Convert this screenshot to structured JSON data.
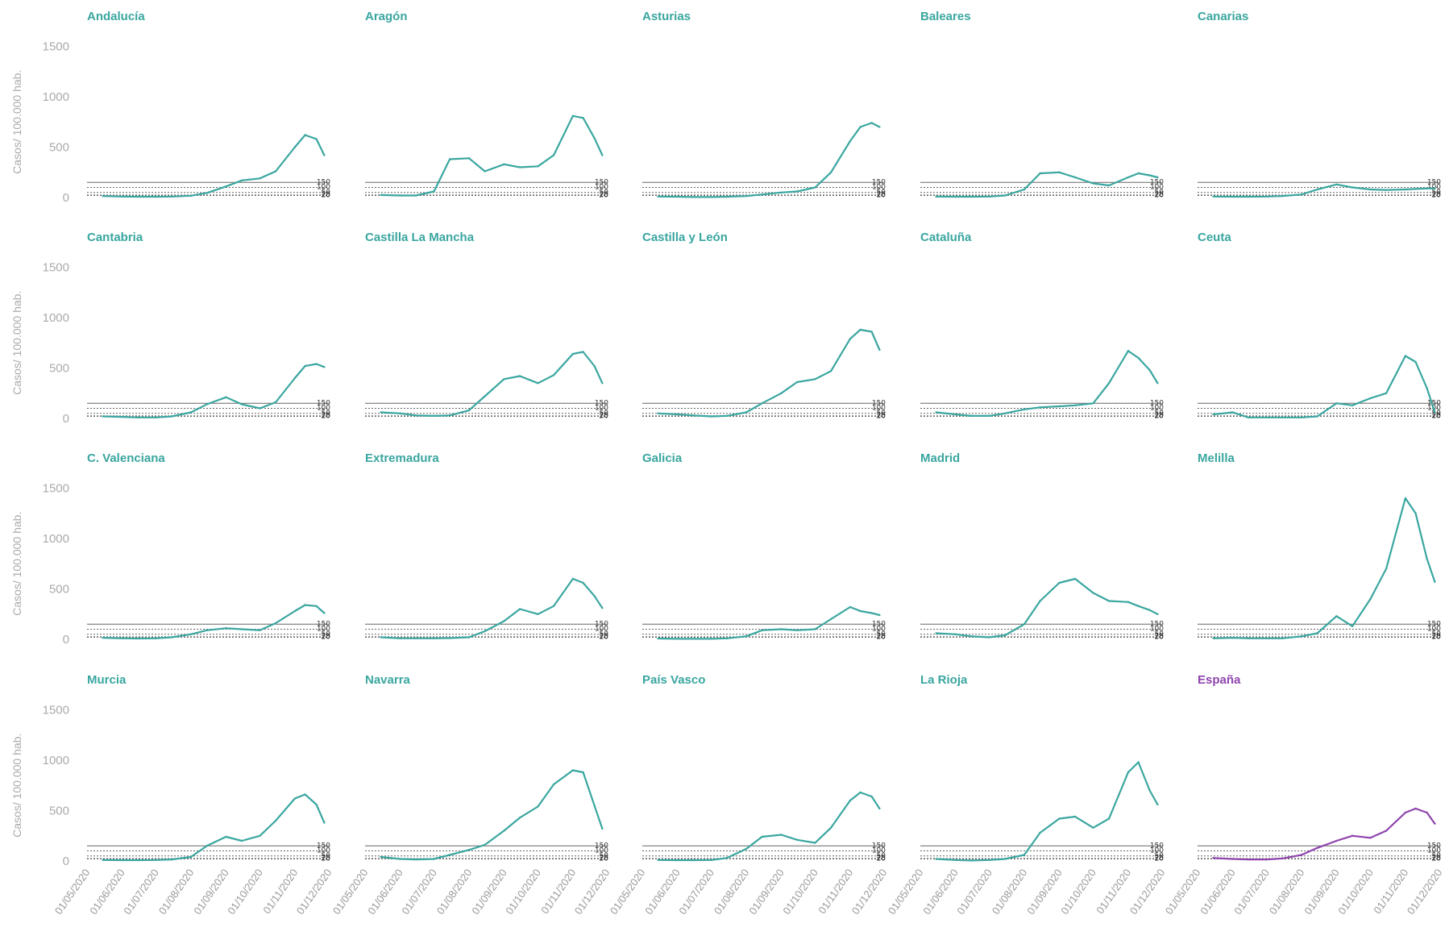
{
  "chart_data": {
    "type": "line",
    "ylabel": "Casos/ 100.000 hab.",
    "ylim": [
      0,
      1500
    ],
    "yticks": [
      "1500",
      "1000",
      "500",
      "0"
    ],
    "xticks": [
      "01/05/2020",
      "01/06/2020",
      "01/07/2020",
      "01/08/2020",
      "01/09/2020",
      "01/10/2020",
      "01/11/2020",
      "01/12/2020"
    ],
    "x_dates": [
      "15/05/2020",
      "01/06/2020",
      "15/06/2020",
      "01/07/2020",
      "15/07/2020",
      "01/08/2020",
      "15/08/2020",
      "01/09/2020",
      "15/09/2020",
      "01/10/2020",
      "15/10/2020",
      "01/11/2020",
      "10/11/2020",
      "20/11/2020",
      "27/11/2020"
    ],
    "reference_lines": [
      {
        "value": 150,
        "label": "150"
      },
      {
        "value": 100,
        "label": "100"
      },
      {
        "value": 50,
        "label": "50"
      },
      {
        "value": 25,
        "label": "25"
      },
      {
        "value": 20,
        "label": "20"
      }
    ],
    "colors": {
      "region": "#3aa6a0",
      "national": "#8e44ad",
      "reference": "#666666",
      "axis_text": "#aaaaaa"
    },
    "series": [
      {
        "name": "Andalucía",
        "values": [
          15,
          10,
          8,
          8,
          10,
          18,
          45,
          110,
          170,
          190,
          260,
          500,
          620,
          580,
          420
        ]
      },
      {
        "name": "Aragón",
        "values": [
          25,
          20,
          20,
          60,
          380,
          390,
          260,
          330,
          300,
          310,
          420,
          810,
          790,
          590,
          420
        ]
      },
      {
        "name": "Asturias",
        "values": [
          10,
          8,
          5,
          5,
          8,
          15,
          30,
          50,
          60,
          100,
          250,
          560,
          700,
          740,
          700
        ]
      },
      {
        "name": "Baleares",
        "values": [
          10,
          8,
          8,
          10,
          20,
          80,
          240,
          250,
          200,
          140,
          120,
          200,
          240,
          220,
          200
        ]
      },
      {
        "name": "Canarias",
        "values": [
          10,
          8,
          8,
          10,
          15,
          30,
          80,
          130,
          100,
          80,
          75,
          80,
          85,
          90,
          90
        ]
      },
      {
        "name": "Cantabria",
        "values": [
          20,
          15,
          10,
          10,
          20,
          60,
          140,
          210,
          140,
          100,
          160,
          400,
          520,
          540,
          510
        ]
      },
      {
        "name": "Castilla La Mancha",
        "values": [
          60,
          50,
          30,
          25,
          30,
          80,
          220,
          390,
          420,
          350,
          430,
          640,
          660,
          520,
          350
        ]
      },
      {
        "name": "Castilla y León",
        "values": [
          50,
          40,
          30,
          20,
          25,
          60,
          150,
          250,
          360,
          390,
          470,
          790,
          880,
          860,
          680
        ]
      },
      {
        "name": "Cataluña",
        "values": [
          60,
          40,
          25,
          25,
          50,
          90,
          110,
          120,
          130,
          150,
          350,
          670,
          600,
          480,
          350
        ]
      },
      {
        "name": "Ceuta",
        "values": [
          40,
          60,
          10,
          10,
          10,
          10,
          20,
          150,
          130,
          200,
          250,
          620,
          560,
          300,
          60
        ]
      },
      {
        "name": "C. Valenciana",
        "values": [
          15,
          10,
          8,
          10,
          20,
          50,
          90,
          110,
          100,
          90,
          160,
          280,
          340,
          330,
          260
        ]
      },
      {
        "name": "Extremadura",
        "values": [
          20,
          10,
          10,
          10,
          12,
          20,
          80,
          180,
          300,
          250,
          330,
          600,
          560,
          430,
          310
        ]
      },
      {
        "name": "Galicia",
        "values": [
          8,
          5,
          5,
          5,
          10,
          30,
          90,
          100,
          90,
          100,
          200,
          320,
          280,
          260,
          240
        ]
      },
      {
        "name": "Madrid",
        "values": [
          60,
          50,
          30,
          20,
          40,
          150,
          380,
          560,
          600,
          460,
          380,
          370,
          330,
          290,
          250
        ]
      },
      {
        "name": "Melilla",
        "values": [
          10,
          15,
          10,
          10,
          10,
          30,
          60,
          230,
          130,
          400,
          700,
          1400,
          1250,
          800,
          570
        ]
      },
      {
        "name": "Murcia",
        "values": [
          10,
          8,
          8,
          10,
          15,
          40,
          150,
          240,
          200,
          250,
          400,
          620,
          660,
          560,
          380
        ]
      },
      {
        "name": "Navarra",
        "values": [
          40,
          20,
          15,
          20,
          60,
          110,
          160,
          300,
          430,
          540,
          760,
          900,
          880,
          550,
          320
        ]
      },
      {
        "name": "País Vasco",
        "values": [
          10,
          8,
          8,
          10,
          30,
          120,
          240,
          260,
          210,
          180,
          330,
          600,
          680,
          640,
          520
        ]
      },
      {
        "name": "La Rioja",
        "values": [
          20,
          10,
          5,
          10,
          20,
          60,
          280,
          420,
          440,
          330,
          420,
          880,
          980,
          700,
          560
        ]
      },
      {
        "name": "España",
        "values": [
          30,
          20,
          15,
          15,
          25,
          60,
          130,
          200,
          250,
          230,
          300,
          480,
          520,
          480,
          370
        ]
      }
    ]
  }
}
